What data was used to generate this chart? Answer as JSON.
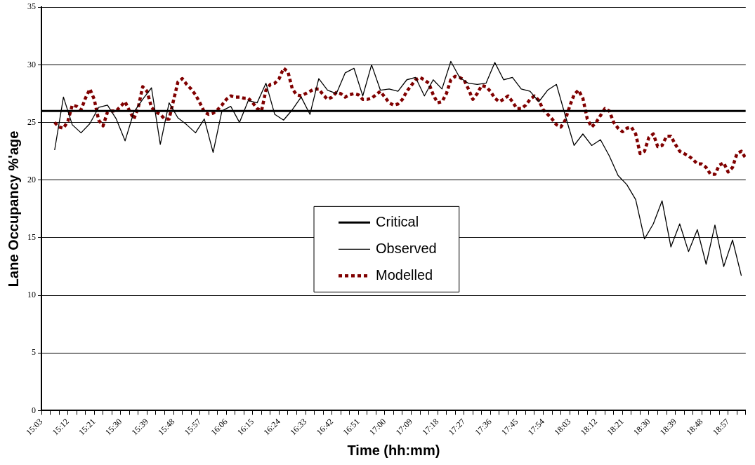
{
  "chart_data": {
    "type": "line",
    "xlabel": "Time (hh:mm)",
    "ylabel": "Lane Occupancy %'age",
    "xlim": [
      15.05,
      19.05
    ],
    "ylim": [
      0,
      35
    ],
    "yticks": [
      0,
      5,
      10,
      15,
      20,
      25,
      30,
      35
    ],
    "xticks": [
      {
        "value": 15.05,
        "label": "15:03"
      },
      {
        "value": 15.1,
        "label": null
      },
      {
        "value": 15.15,
        "label": null
      },
      {
        "value": 15.2,
        "label": "15:12"
      },
      {
        "value": 15.25,
        "label": null
      },
      {
        "value": 15.3,
        "label": null
      },
      {
        "value": 15.35,
        "label": "15:21"
      },
      {
        "value": 15.4,
        "label": null
      },
      {
        "value": 15.45,
        "label": null
      },
      {
        "value": 15.5,
        "label": "15:30"
      },
      {
        "value": 15.55,
        "label": null
      },
      {
        "value": 15.6,
        "label": null
      },
      {
        "value": 15.65,
        "label": "15:39"
      },
      {
        "value": 15.7,
        "label": null
      },
      {
        "value": 15.75,
        "label": null
      },
      {
        "value": 15.8,
        "label": "15:48"
      },
      {
        "value": 15.85,
        "label": null
      },
      {
        "value": 15.9,
        "label": null
      },
      {
        "value": 15.95,
        "label": "15:57"
      },
      {
        "value": 16.0,
        "label": null
      },
      {
        "value": 16.05,
        "label": null
      },
      {
        "value": 16.1,
        "label": "16:06"
      },
      {
        "value": 16.15,
        "label": null
      },
      {
        "value": 16.2,
        "label": null
      },
      {
        "value": 16.25,
        "label": "16:15"
      },
      {
        "value": 16.3,
        "label": null
      },
      {
        "value": 16.35,
        "label": null
      },
      {
        "value": 16.4,
        "label": "16:24"
      },
      {
        "value": 16.45,
        "label": null
      },
      {
        "value": 16.5,
        "label": null
      },
      {
        "value": 16.55,
        "label": "16:33"
      },
      {
        "value": 16.6,
        "label": null
      },
      {
        "value": 16.65,
        "label": null
      },
      {
        "value": 16.7,
        "label": "16:42"
      },
      {
        "value": 16.75,
        "label": null
      },
      {
        "value": 16.8,
        "label": null
      },
      {
        "value": 16.85,
        "label": "16:51"
      },
      {
        "value": 16.9,
        "label": null
      },
      {
        "value": 16.95,
        "label": null
      },
      {
        "value": 17.0,
        "label": "17:00"
      },
      {
        "value": 17.05,
        "label": null
      },
      {
        "value": 17.1,
        "label": null
      },
      {
        "value": 17.15,
        "label": "17:09"
      },
      {
        "value": 17.2,
        "label": null
      },
      {
        "value": 17.25,
        "label": null
      },
      {
        "value": 17.3,
        "label": "17:18"
      },
      {
        "value": 17.35,
        "label": null
      },
      {
        "value": 17.4,
        "label": null
      },
      {
        "value": 17.45,
        "label": "17:27"
      },
      {
        "value": 17.5,
        "label": null
      },
      {
        "value": 17.55,
        "label": null
      },
      {
        "value": 17.6,
        "label": "17:36"
      },
      {
        "value": 17.65,
        "label": null
      },
      {
        "value": 17.7,
        "label": null
      },
      {
        "value": 17.75,
        "label": "17:45"
      },
      {
        "value": 17.8,
        "label": null
      },
      {
        "value": 17.85,
        "label": null
      },
      {
        "value": 17.9,
        "label": "17:54"
      },
      {
        "value": 17.95,
        "label": null
      },
      {
        "value": 18.0,
        "label": null
      },
      {
        "value": 18.05,
        "label": "18:03"
      },
      {
        "value": 18.1,
        "label": null
      },
      {
        "value": 18.15,
        "label": null
      },
      {
        "value": 18.2,
        "label": "18:12"
      },
      {
        "value": 18.25,
        "label": null
      },
      {
        "value": 18.3,
        "label": null
      },
      {
        "value": 18.35,
        "label": "18:21"
      },
      {
        "value": 18.4,
        "label": null
      },
      {
        "value": 18.45,
        "label": null
      },
      {
        "value": 18.5,
        "label": "18:30"
      },
      {
        "value": 18.55,
        "label": null
      },
      {
        "value": 18.6,
        "label": null
      },
      {
        "value": 18.65,
        "label": "18:39"
      },
      {
        "value": 18.7,
        "label": null
      },
      {
        "value": 18.75,
        "label": null
      },
      {
        "value": 18.8,
        "label": "18:48"
      },
      {
        "value": 18.85,
        "label": null
      },
      {
        "value": 18.9,
        "label": null
      },
      {
        "value": 18.95,
        "label": "18:57"
      },
      {
        "value": 19.0,
        "label": null
      },
      {
        "value": 19.05,
        "label": null
      }
    ],
    "grid": "y",
    "legend": "center",
    "marker": "none",
    "series": [
      {
        "name": "Critical",
        "color": "#000000",
        "line_style": "solid",
        "x": [
          15.05,
          19.05
        ],
        "values": [
          26,
          26
        ]
      },
      {
        "name": "Observed",
        "color": "#000000",
        "line_style": "solid",
        "x": [
          15.125,
          15.175,
          15.225,
          15.275,
          15.325,
          15.375,
          15.425,
          15.475,
          15.525,
          15.575,
          15.625,
          15.675,
          15.725,
          15.775,
          15.825,
          15.875,
          15.925,
          15.975,
          16.025,
          16.075,
          16.125,
          16.175,
          16.225,
          16.275,
          16.325,
          16.375,
          16.425,
          16.475,
          16.525,
          16.575,
          16.625,
          16.675,
          16.725,
          16.775,
          16.825,
          16.875,
          16.925,
          16.975,
          17.025,
          17.075,
          17.125,
          17.175,
          17.225,
          17.275,
          17.325,
          17.375,
          17.425,
          17.475,
          17.525,
          17.575,
          17.625,
          17.675,
          17.725,
          17.775,
          17.825,
          17.875,
          17.925,
          17.975,
          18.025,
          18.075,
          18.125,
          18.175,
          18.225,
          18.275,
          18.325,
          18.375,
          18.425,
          18.475,
          18.525,
          18.575,
          18.625,
          18.675,
          18.725,
          18.775,
          18.825,
          18.875,
          18.925,
          18.975,
          19.025
        ],
        "values": [
          22.6,
          27.2,
          24.8,
          24.1,
          24.9,
          26.3,
          26.5,
          25.3,
          23.4,
          25.9,
          27.0,
          28.0,
          23.1,
          26.7,
          25.4,
          24.8,
          24.1,
          25.3,
          22.4,
          26.0,
          26.4,
          25.0,
          26.9,
          26.7,
          28.4,
          25.7,
          25.2,
          26.1,
          27.2,
          25.7,
          28.8,
          27.8,
          27.5,
          29.3,
          29.7,
          27.3,
          30.0,
          27.8,
          27.9,
          27.7,
          28.7,
          28.9,
          27.3,
          28.7,
          27.9,
          30.3,
          28.9,
          28.4,
          28.3,
          28.4,
          30.2,
          28.7,
          28.9,
          27.9,
          27.7,
          26.8,
          27.8,
          28.3,
          25.6,
          23.0,
          24.0,
          23.0,
          23.5,
          22.1,
          20.4,
          19.6,
          18.3,
          14.9,
          16.2,
          18.2,
          14.2,
          16.2,
          13.8,
          15.7,
          12.7,
          16.1,
          12.5,
          14.8,
          11.7
        ]
      },
      {
        "name": "Modelled",
        "color": "#800000",
        "line_style": "dashed",
        "x": [
          15.125,
          15.15,
          15.175,
          15.2,
          15.225,
          15.25,
          15.275,
          15.3,
          15.325,
          15.35,
          15.375,
          15.4,
          15.425,
          15.45,
          15.475,
          15.5,
          15.525,
          15.55,
          15.575,
          15.6,
          15.625,
          15.65,
          15.675,
          15.7,
          15.725,
          15.75,
          15.775,
          15.8,
          15.825,
          15.85,
          15.875,
          15.9,
          15.925,
          15.95,
          15.975,
          16.0,
          16.025,
          16.05,
          16.075,
          16.1,
          16.125,
          16.15,
          16.175,
          16.2,
          16.225,
          16.25,
          16.275,
          16.3,
          16.325,
          16.35,
          16.375,
          16.4,
          16.425,
          16.45,
          16.475,
          16.5,
          16.525,
          16.55,
          16.575,
          16.6,
          16.625,
          16.65,
          16.675,
          16.7,
          16.725,
          16.75,
          16.775,
          16.8,
          16.825,
          16.85,
          16.875,
          16.9,
          16.925,
          16.95,
          16.975,
          17.0,
          17.025,
          17.05,
          17.075,
          17.1,
          17.125,
          17.15,
          17.175,
          17.2,
          17.225,
          17.25,
          17.275,
          17.3,
          17.325,
          17.35,
          17.375,
          17.4,
          17.425,
          17.45,
          17.475,
          17.5,
          17.525,
          17.55,
          17.575,
          17.6,
          17.625,
          17.65,
          17.675,
          17.7,
          17.725,
          17.75,
          17.775,
          17.8,
          17.825,
          17.85,
          17.875,
          17.9,
          17.925,
          17.95,
          17.975,
          18.0,
          18.025,
          18.05,
          18.075,
          18.1,
          18.125,
          18.15,
          18.175,
          18.2,
          18.225,
          18.25,
          18.275,
          18.3,
          18.325,
          18.35,
          18.375,
          18.4,
          18.425,
          18.45,
          18.475,
          18.5,
          18.525,
          18.55,
          18.575,
          18.6,
          18.625,
          18.65,
          18.675,
          18.7,
          18.725,
          18.75,
          18.775,
          18.8,
          18.825,
          18.85,
          18.875,
          18.9,
          18.925,
          18.95,
          18.975,
          19.0,
          19.025,
          19.05
        ],
        "values": [
          25.0,
          24.6,
          24.5,
          25.1,
          26.5,
          26.4,
          26.1,
          27.1,
          27.9,
          27.0,
          25.2,
          24.7,
          25.9,
          26.0,
          26.0,
          26.4,
          26.8,
          26.0,
          25.3,
          26.3,
          28.1,
          27.7,
          26.3,
          25.9,
          25.7,
          25.3,
          25.3,
          26.9,
          28.5,
          28.8,
          28.3,
          27.9,
          27.4,
          26.7,
          25.9,
          25.7,
          25.8,
          26.1,
          26.5,
          27.0,
          27.3,
          27.2,
          27.2,
          27.1,
          27.1,
          26.7,
          26.2,
          26.0,
          27.8,
          28.3,
          28.4,
          28.8,
          29.7,
          29.4,
          27.9,
          27.4,
          27.3,
          27.5,
          27.7,
          27.9,
          27.9,
          27.4,
          27.0,
          27.2,
          27.6,
          27.5,
          27.2,
          27.4,
          27.5,
          27.4,
          27.0,
          27.0,
          27.1,
          27.4,
          27.7,
          27.2,
          26.7,
          26.5,
          26.6,
          27.0,
          27.7,
          28.2,
          28.7,
          28.9,
          28.7,
          28.4,
          27.4,
          26.7,
          26.8,
          27.5,
          28.7,
          29.0,
          28.9,
          28.7,
          27.9,
          27.0,
          27.5,
          28.2,
          28.1,
          27.7,
          27.1,
          26.8,
          27.0,
          27.3,
          26.8,
          26.2,
          26.2,
          26.5,
          27.0,
          27.3,
          26.9,
          26.1,
          25.7,
          25.3,
          24.8,
          24.6,
          25.2,
          26.4,
          27.4,
          27.8,
          27.1,
          25.3,
          24.6,
          25.0,
          25.6,
          26.2,
          26.0,
          25.0,
          24.5,
          24.2,
          24.5,
          24.6,
          24.0,
          22.3,
          22.5,
          23.7,
          24.0,
          22.9,
          23.0,
          23.8,
          23.8,
          23.1,
          22.5,
          22.3,
          22.1,
          21.8,
          21.4,
          21.4,
          21.1,
          20.5,
          20.5,
          21.3,
          21.5,
          20.7,
          21.1,
          22.3,
          22.5,
          21.9
        ]
      }
    ]
  }
}
